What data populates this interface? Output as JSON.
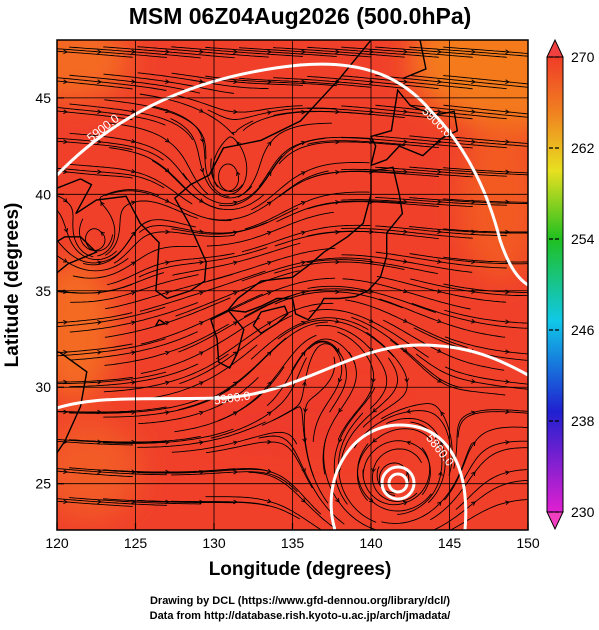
{
  "title": "MSM 06Z04Aug2026 (500.0hPa)",
  "x_axis": {
    "label": "Longitude (degrees)",
    "lim": [
      120,
      150
    ],
    "ticks": [
      120,
      125,
      130,
      135,
      140,
      145,
      150
    ]
  },
  "y_axis": {
    "label": "Latitude  (degrees)",
    "lim": [
      22.6,
      48
    ],
    "ticks": [
      25,
      30,
      35,
      40,
      45
    ]
  },
  "colorbar": {
    "lim": [
      230,
      270
    ],
    "ticks": [
      230,
      238,
      246,
      254,
      262,
      270
    ]
  },
  "contour_labels": [
    "5900.0",
    "5900.0",
    "5900.0",
    "5860.0"
  ],
  "credits": [
    "Drawing by DCL (https://www.gfd-dennou.org/library/dcl/)",
    "Data from http://database.rish.kyoto-u.ac.jp/arch/jmadata/"
  ]
}
